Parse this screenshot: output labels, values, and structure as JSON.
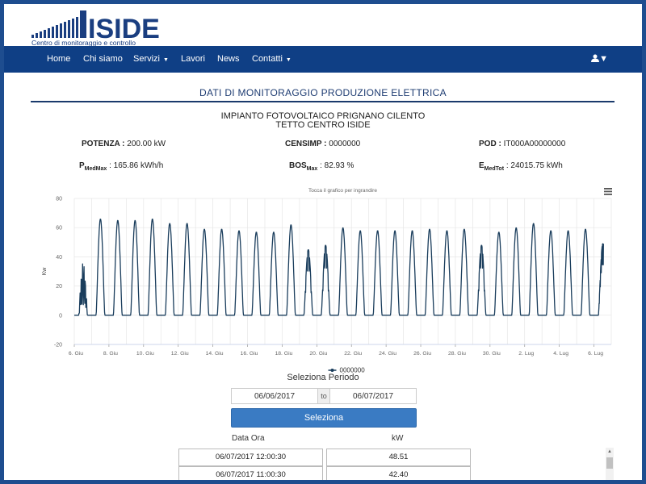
{
  "brand": {
    "logo_text": "ISIDE",
    "tagline": "Centro di monitoraggio e controllo"
  },
  "nav": {
    "items": [
      {
        "label": "Home",
        "dropdown": false
      },
      {
        "label": "Chi siamo",
        "dropdown": false
      },
      {
        "label": "Servizi",
        "dropdown": true
      },
      {
        "label": "Lavori",
        "dropdown": false
      },
      {
        "label": "News",
        "dropdown": false
      },
      {
        "label": "Contatti",
        "dropdown": true
      }
    ],
    "user_icon": "user-icon"
  },
  "page": {
    "section_title": "DATI DI MONITORAGGIO PRODUZIONE ELETTRICA",
    "plant_line1": "IMPIANTO FOTOVOLTAICO PRIGNANO CILENTO",
    "plant_line2": "TETTO CENTRO ISIDE"
  },
  "info": {
    "potenza_label": "POTENZA :",
    "potenza_value": "200.00 kW",
    "censimp_label": "CENSIMP :",
    "censimp_value": "0000000",
    "pod_label": "POD :",
    "pod_value": "IT000A00000000",
    "pmed_label": "P",
    "pmed_sub": "MedMax",
    "pmed_value": ": 165.86 kWh/h",
    "bos_label": "BOS",
    "bos_sub": "Max",
    "bos_value": ": 82.93 %",
    "emed_label": "E",
    "emed_sub": "MedTot",
    "emed_value": ": 24015.75 kWh"
  },
  "chart_data": {
    "type": "line",
    "subtitle": "Tocca il grafico per ingrandire",
    "menu_icon": "hamburger-menu-icon",
    "ylabel": "Kw",
    "ylim": [
      -20,
      80
    ],
    "yticks": [
      -20,
      0,
      20,
      40,
      60,
      80
    ],
    "xlim": [
      "2017-06-06",
      "2017-07-07"
    ],
    "xtick_labels": [
      "6. Giu",
      "8. Giu",
      "10. Giu",
      "12. Giu",
      "14. Giu",
      "16. Giu",
      "18. Giu",
      "20. Giu",
      "22. Giu",
      "24. Giu",
      "26. Giu",
      "28. Giu",
      "30. Giu",
      "2. Lug",
      "4. Lug",
      "6. Lug"
    ],
    "grid": true,
    "legend_position": "bottom-center",
    "series": [
      {
        "name": "0000000",
        "color": "#1a3d5c",
        "daily_peak_kw": [
          36,
          66,
          65,
          65,
          66,
          63,
          63,
          59,
          59,
          58,
          57,
          57,
          62,
          45,
          48,
          60,
          58,
          58,
          58,
          58,
          59,
          58,
          59,
          48,
          57,
          60,
          63,
          58,
          58,
          59,
          49
        ]
      }
    ]
  },
  "period": {
    "label": "Seleziona Periodo",
    "from": "06/06/2017",
    "separator": "to",
    "to": "06/07/2017",
    "button": "Seleziona"
  },
  "table": {
    "col_date": "Data Ora",
    "col_kw": "kW",
    "rows": [
      {
        "date": "06/07/2017 12:00:30",
        "kw": "48.51"
      },
      {
        "date": "06/07/2017 11:00:30",
        "kw": "42.40"
      }
    ]
  }
}
